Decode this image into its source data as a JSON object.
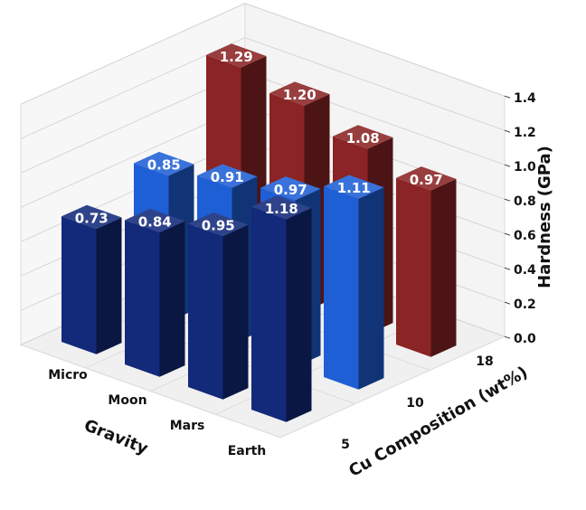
{
  "chart_data": {
    "type": "bar3d",
    "categories": [
      "Micro",
      "Moon",
      "Mars",
      "Earth"
    ],
    "series": [
      {
        "name": "5",
        "color": "#13297a",
        "values": [
          0.73,
          0.84,
          0.95,
          1.18
        ],
        "value_labels": [
          "0.73",
          "0.84",
          "0.95",
          "1.18"
        ]
      },
      {
        "name": "10",
        "color": "#1f5fd6",
        "values": [
          0.85,
          0.91,
          0.97,
          1.11
        ],
        "value_labels": [
          "0.85",
          "0.91",
          "0.97",
          "1.11"
        ]
      },
      {
        "name": "18",
        "color": "#8b2424",
        "values": [
          1.29,
          1.2,
          1.08,
          0.97
        ],
        "value_labels": [
          "1.29",
          "1.20",
          "1.08",
          "0.97"
        ]
      }
    ],
    "xlabel": "Gravity",
    "ylabel": "Cu Composition (wt%)",
    "zlabel": "Hardness (GPa)",
    "zlim": [
      0,
      1.4
    ],
    "zticks": [
      {
        "value": 0,
        "label": "0.0"
      },
      0.2,
      0.4,
      0.6,
      0.8,
      {
        "value": 1,
        "label": "1.0"
      },
      1.2,
      1.4
    ],
    "grid": true
  }
}
